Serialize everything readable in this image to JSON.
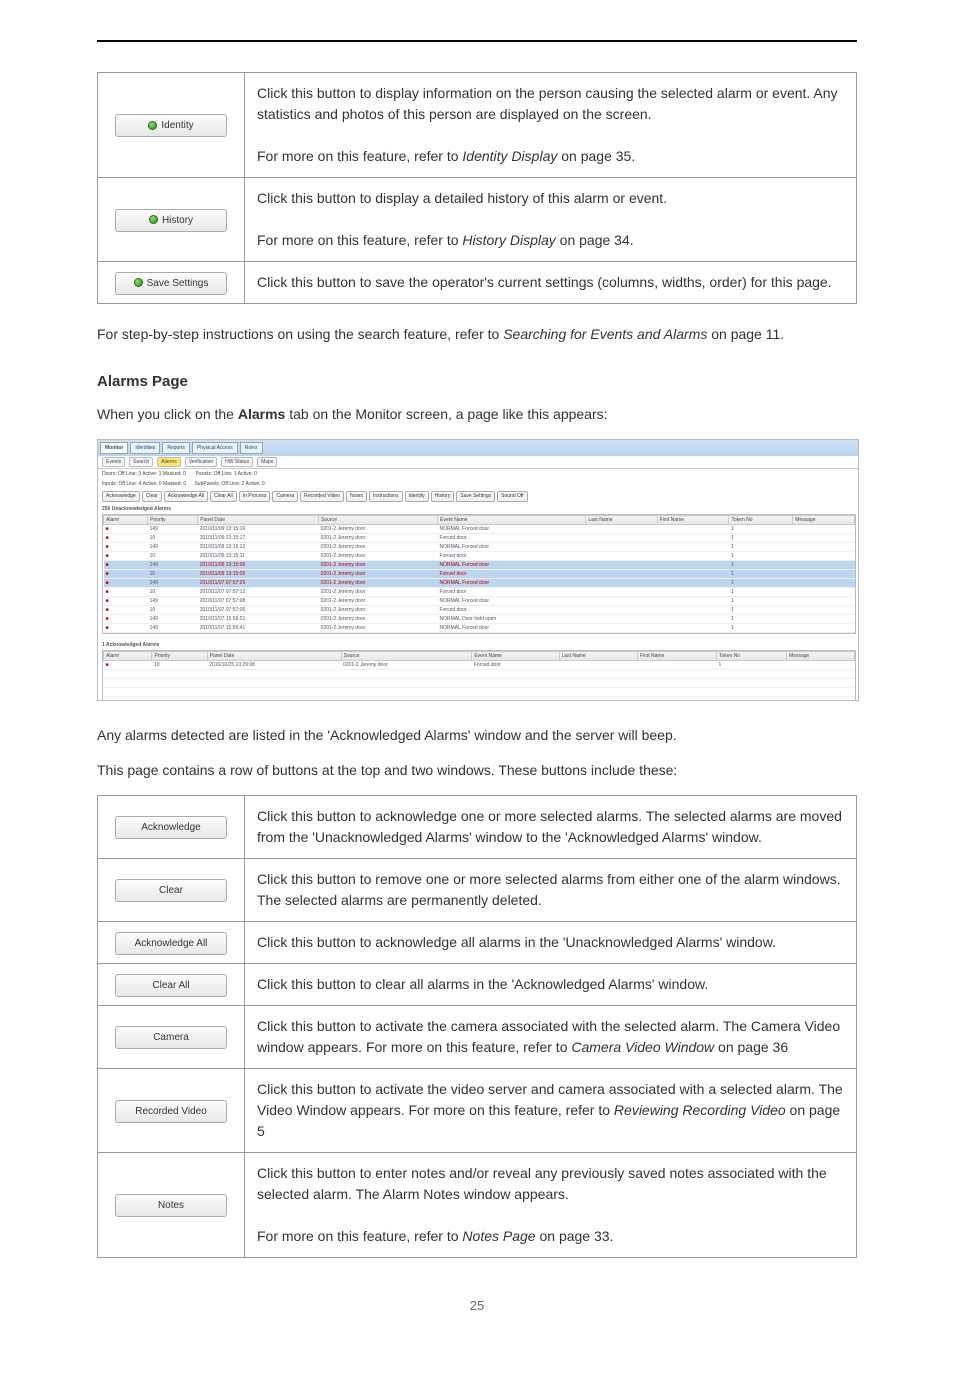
{
  "table1": {
    "rows": [
      {
        "btn": "Identity",
        "dot": true,
        "body_html": "Click this button to display information on the person causing the selected alarm or event. Any statistics and photos of this person are displayed on the screen.<br><br>For more on this feature, refer to <span class='italic'>Identity Display</span> on page 35."
      },
      {
        "btn": "History",
        "dot": true,
        "body_html": "Click this button to display a detailed history of this alarm or event.<br><br>For more on this feature, refer to <span class='italic'>History Display</span> on page 34."
      },
      {
        "btn": "Save Settings",
        "dot": true,
        "body_html": "Click this button to save the operator's current settings (columns, widths, order) for this page."
      }
    ]
  },
  "para1": "For step-by-step instructions on using the search feature, refer to <span class='italic'>Searching for Events and Alarms</span> on page 11.",
  "heading": "Alarms Page",
  "para2_pre": "When you click on the ",
  "para2_bold": "Alarms",
  "para2_post": " tab on the Monitor screen, a page like this appears:",
  "para3": "Any alarms detected are listed in the 'Acknowledged Alarms' window and the server will beep.",
  "para4": "This page contains a row of buttons at the top and two windows. These buttons include these:",
  "table2": {
    "rows": [
      {
        "btn": "Acknowledge",
        "body_html": "Click this button to acknowledge one or more selected alarms. The selected alarms are moved from the 'Unacknowledged Alarms' window to the 'Acknowledged Alarms' window."
      },
      {
        "btn": "Clear",
        "body_html": "Click this button to remove one or more selected alarms from either one of the alarm windows. The selected alarms are permanently deleted."
      },
      {
        "btn": "Acknowledge All",
        "body_html": "Click this button to acknowledge all alarms in the 'Unacknowledged Alarms' window."
      },
      {
        "btn": "Clear All",
        "body_html": "Click this button to clear all alarms in the 'Acknowledged Alarms' window."
      },
      {
        "btn": "Camera",
        "body_html": "Click this button to activate the camera associated with the selected alarm. The Camera Video window appears. For more on this feature, refer to <span class='italic'>Camera Video Window</span> on page 36"
      },
      {
        "btn": "Recorded Video",
        "body_html": "Click this button to activate the video server and camera associated with a selected alarm. The Video Window appears. For more on this feature, refer to <span class='italic'>Reviewing Recording Video</span> on page 5"
      },
      {
        "btn": "Notes",
        "body_html": "Click this button to enter notes and/or reveal any previously saved notes associated with the selected alarm. The Alarm Notes window appears.<br><br>For more on this feature, refer to <span class='italic'>Notes Page</span> on page 33."
      }
    ]
  },
  "shot": {
    "tabs": [
      "Monitor",
      "Identities",
      "Reports",
      "Physical Access",
      "Roles"
    ],
    "subtabs": [
      "Events",
      "Search",
      "Alarms",
      "Verification",
      "HW Status",
      "Maps"
    ],
    "status1": "Doors: Off Line: 3 Active: 1 Masked: 0",
    "status2": "Inputs: Off Line: 4 Active: 0 Masked: 0",
    "status3": "Panels: Off Line: 1 Active: 0",
    "status4": "SubPanels: Off Line: 2 Active: 0",
    "btnrow": [
      "Acknowledge",
      "Clear",
      "Acknowledge All",
      "Clear All",
      "In Process",
      "Camera",
      "Recorded Video",
      "Notes",
      "Instructions",
      "Identity",
      "History",
      "Save Settings",
      "Sound Off"
    ],
    "grid1_title": "250 Unacknowledged Alarms",
    "grid2_title": "1 Acknowledged Alarms",
    "cols": [
      "Alarm",
      "Priority",
      "Panel Date",
      "Source",
      "Event Name",
      "Last Name",
      "First Name",
      "Token No",
      "Message"
    ],
    "rows1": [
      {
        "pr": "149",
        "date": "2010/11/09 13:15:16",
        "src": "0201-2 Jeremy door",
        "ev": "NORMAL Forced door",
        "sel": false
      },
      {
        "pr": "10",
        "date": "2010/11/09 13:15:17",
        "src": "0201-2 Jeremy door",
        "ev": "Forced door",
        "sel": false
      },
      {
        "pr": "149",
        "date": "2010/11/09 13:15:12",
        "src": "0201-2 Jeremy door",
        "ev": "NORMAL Forced door",
        "sel": false
      },
      {
        "pr": "10",
        "date": "2010/11/09 13:15:11",
        "src": "0201-2 Jeremy door",
        "ev": "Forced door",
        "sel": false
      },
      {
        "pr": "149",
        "date": "2010/11/09 13:15:06",
        "src": "0201-2 Jeremy door",
        "ev": "NORMAL Forced door",
        "sel": true,
        "red": true
      },
      {
        "pr": "10",
        "date": "2010/11/09 13:15:05",
        "src": "0201-2 Jeremy door",
        "ev": "Forced door",
        "sel": true,
        "red": true
      },
      {
        "pr": "149",
        "date": "2010/11/07 07:57:25",
        "src": "0201-2 Jeremy door",
        "ev": "NORMAL Forced door",
        "sel": true,
        "red": true
      },
      {
        "pr": "10",
        "date": "2010/11/07 07:57:12",
        "src": "0201-2 Jeremy door",
        "ev": "Forced door",
        "sel": false
      },
      {
        "pr": "149",
        "date": "2010/11/07 07:57:08",
        "src": "0201-2 Jeremy door",
        "ev": "NORMAL Forced door",
        "sel": false
      },
      {
        "pr": "10",
        "date": "2010/11/07 07:57:06",
        "src": "0201-2 Jeremy door",
        "ev": "Forced door",
        "sel": false
      },
      {
        "pr": "149",
        "date": "2010/11/07 15:59:51",
        "src": "0201-2 Jeremy door",
        "ev": "NORMAL Door held open",
        "sel": false
      },
      {
        "pr": "149",
        "date": "2010/11/07 15:59:41",
        "src": "0201-2 Jeremy door",
        "ev": "NORMAL Forced door",
        "sel": false
      }
    ],
    "rows2": [
      {
        "pr": "10",
        "date": "2010/10/25 10:29:08",
        "src": "0201-2 Jeremy door",
        "ev": "Forced door",
        "sel": false
      }
    ]
  },
  "pagenum": "25"
}
